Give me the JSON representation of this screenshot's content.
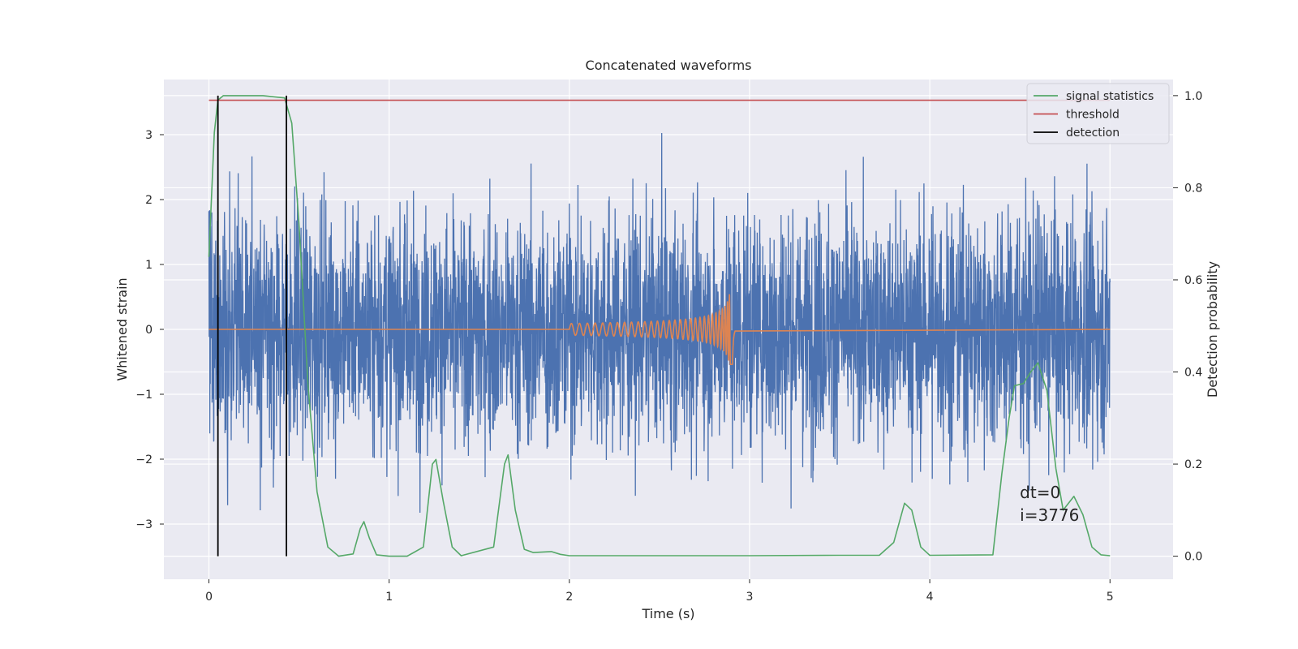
{
  "chart_data": {
    "type": "line",
    "title": "Concatenated waveforms",
    "xlabel": "Time (s)",
    "ylabel": "Whitened strain",
    "y2label": "Detection probability",
    "xlim": [
      -0.25,
      5.35
    ],
    "ylim": [
      -3.85,
      3.85
    ],
    "y2lim": [
      -0.05,
      1.035
    ],
    "xticks": [
      0,
      1,
      2,
      3,
      4,
      5
    ],
    "xtick_labels": [
      "0",
      "1",
      "2",
      "3",
      "4",
      "5"
    ],
    "yticks": [
      -3,
      -2,
      -1,
      0,
      1,
      2,
      3
    ],
    "ytick_labels": [
      "−3",
      "−2",
      "−1",
      "0",
      "1",
      "2",
      "3"
    ],
    "y2ticks": [
      0.0,
      0.2,
      0.4,
      0.6,
      0.8,
      1.0
    ],
    "y2tick_labels": [
      "0.0",
      "0.2",
      "0.4",
      "0.6",
      "0.8",
      "1.0"
    ],
    "grid": true,
    "legend_position": "top-right",
    "colors": {
      "background": "#eaeaf2",
      "noise": "#4c72b0",
      "injection": "#dd8452",
      "signal_statistics": "#55a868",
      "threshold": "#c44e52",
      "detection": "#000000"
    },
    "series": [
      {
        "name": "",
        "axis": "left",
        "description_kind": "whitened noise",
        "x_range": [
          0,
          5
        ],
        "amplitude_envelope": 3.5
      },
      {
        "name": "",
        "axis": "left",
        "description_kind": "injected chirp",
        "x_range": [
          2.0,
          2.92
        ],
        "peak_amplitude": 0.55
      },
      {
        "name": "signal statistics",
        "axis": "right",
        "x": [
          0,
          0.03,
          0.05,
          0.08,
          0.15,
          0.3,
          0.42,
          0.46,
          0.5,
          0.52,
          0.55,
          0.6,
          0.66,
          0.72,
          0.8,
          0.84,
          0.86,
          0.89,
          0.93,
          1.0,
          1.1,
          1.19,
          1.24,
          1.26,
          1.3,
          1.35,
          1.4,
          1.58,
          1.64,
          1.66,
          1.7,
          1.75,
          1.8,
          1.9,
          1.95,
          2.0,
          2.5,
          3.0,
          3.5,
          3.72,
          3.8,
          3.86,
          3.9,
          3.95,
          4.0,
          4.35,
          4.4,
          4.44,
          4.47,
          4.52,
          4.56,
          4.6,
          4.65,
          4.7,
          4.74,
          4.8,
          4.85,
          4.9,
          4.95,
          5.0
        ],
        "y": [
          0.65,
          0.92,
          0.99,
          1.0,
          1.0,
          1.0,
          0.995,
          0.94,
          0.72,
          0.58,
          0.37,
          0.14,
          0.02,
          0.0,
          0.005,
          0.06,
          0.075,
          0.04,
          0.003,
          0.0,
          0.0,
          0.02,
          0.2,
          0.21,
          0.12,
          0.02,
          0.001,
          0.02,
          0.2,
          0.22,
          0.1,
          0.015,
          0.008,
          0.01,
          0.004,
          0.001,
          0.001,
          0.001,
          0.002,
          0.002,
          0.03,
          0.115,
          0.1,
          0.02,
          0.002,
          0.003,
          0.18,
          0.3,
          0.37,
          0.375,
          0.4,
          0.42,
          0.36,
          0.19,
          0.1,
          0.13,
          0.09,
          0.02,
          0.003,
          0.001
        ]
      },
      {
        "name": "threshold",
        "axis": "right",
        "x": [
          0,
          5
        ],
        "y": [
          0.99,
          0.99
        ]
      },
      {
        "name": "detection",
        "axis": "right",
        "vertical_lines_x": [
          0.05,
          0.43
        ],
        "y_range": [
          0.0,
          1.0
        ]
      }
    ],
    "annotations": [
      "dt=0",
      "i=3776"
    ]
  }
}
